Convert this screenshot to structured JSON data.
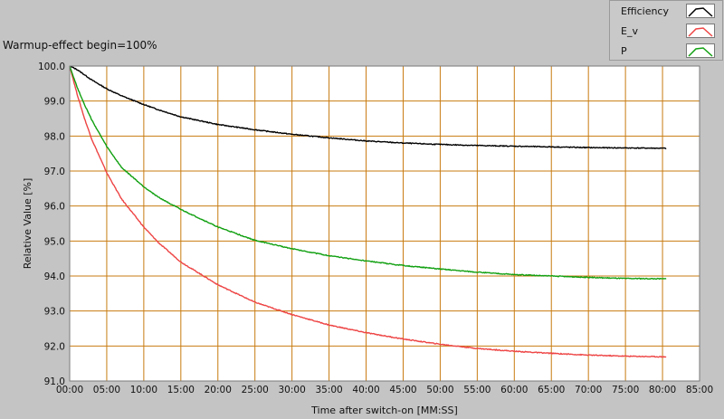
{
  "chart_data": {
    "type": "line",
    "title": "Warmup-effect begin=100%",
    "xlabel": "Time after switch-on [MM:SS]",
    "ylabel": "Relative Value [%]",
    "xlim": [
      0,
      85
    ],
    "ylim": [
      91,
      100
    ],
    "x_ticks": [
      "00:00",
      "05:00",
      "10:00",
      "15:00",
      "20:00",
      "25:00",
      "30:00",
      "35:00",
      "40:00",
      "45:00",
      "50:00",
      "55:00",
      "60:00",
      "65:00",
      "70:00",
      "75:00",
      "80:00",
      "85:00"
    ],
    "y_ticks": [
      "91.0",
      "92.0",
      "93.0",
      "94.0",
      "95.0",
      "96.0",
      "97.0",
      "98.0",
      "99.0",
      "100.0"
    ],
    "grid": true,
    "legend_position": "top-right",
    "x_unit": "minutes after switch-on",
    "series": [
      {
        "name": "Efficiency",
        "color": "#000000",
        "x": [
          0,
          1,
          2,
          3,
          5,
          7,
          10,
          12,
          15,
          20,
          25,
          30,
          35,
          40,
          45,
          50,
          55,
          60,
          65,
          70,
          75,
          80.5
        ],
        "y": [
          100.0,
          99.9,
          99.75,
          99.6,
          99.35,
          99.15,
          98.9,
          98.75,
          98.55,
          98.33,
          98.18,
          98.05,
          97.95,
          97.86,
          97.8,
          97.76,
          97.73,
          97.71,
          97.69,
          97.67,
          97.66,
          97.65
        ]
      },
      {
        "name": "E_v",
        "color": "#ee4444",
        "x": [
          0,
          1,
          2,
          3,
          5,
          7,
          10,
          12,
          15,
          20,
          25,
          30,
          35,
          40,
          45,
          50,
          55,
          60,
          65,
          70,
          75,
          80.5
        ],
        "y": [
          100.0,
          99.2,
          98.5,
          97.9,
          96.95,
          96.2,
          95.4,
          94.95,
          94.4,
          93.75,
          93.25,
          92.9,
          92.6,
          92.38,
          92.2,
          92.05,
          91.93,
          91.85,
          91.79,
          91.74,
          91.71,
          91.69
        ]
      },
      {
        "name": "P",
        "color": "#11a011",
        "x": [
          0,
          1,
          2,
          3,
          5,
          7,
          10,
          12,
          15,
          20,
          25,
          30,
          35,
          40,
          45,
          50,
          55,
          60,
          65,
          70,
          75,
          80.5
        ],
        "y": [
          100.0,
          99.4,
          98.9,
          98.45,
          97.7,
          97.1,
          96.55,
          96.25,
          95.9,
          95.4,
          95.02,
          94.78,
          94.58,
          94.43,
          94.3,
          94.2,
          94.11,
          94.04,
          94.0,
          93.96,
          93.93,
          93.92
        ]
      }
    ]
  }
}
